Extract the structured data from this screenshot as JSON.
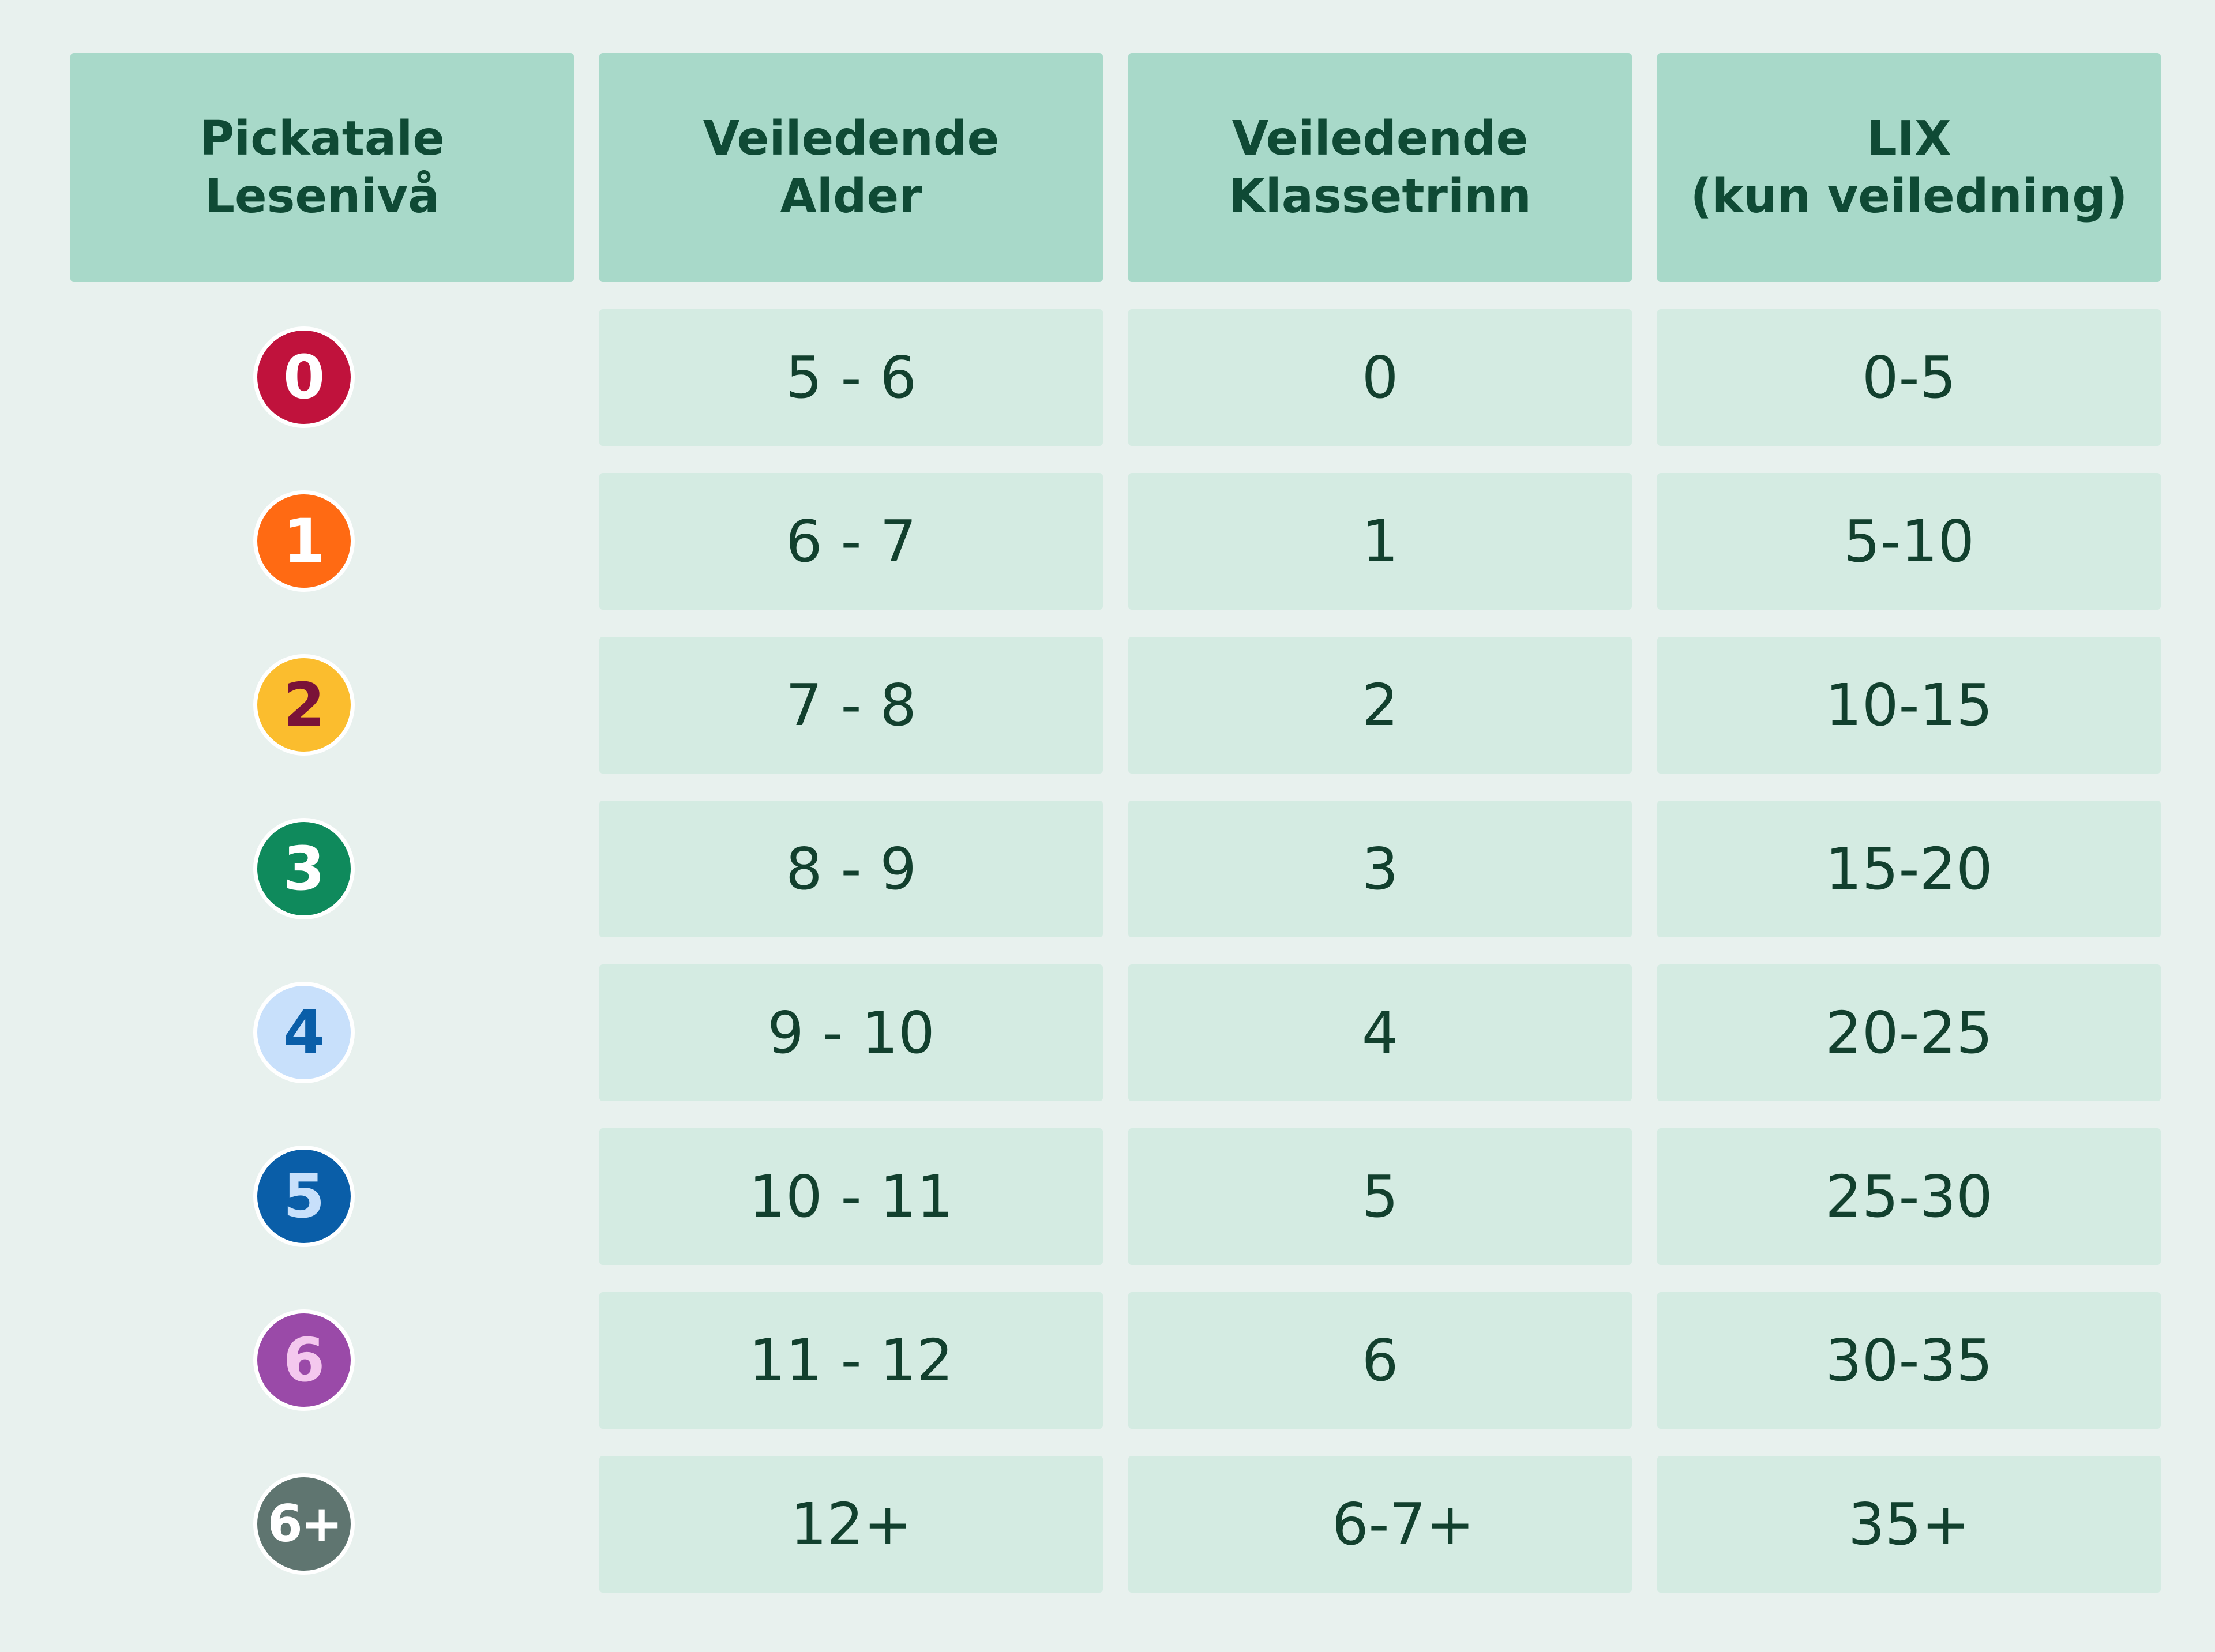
{
  "headers": [
    {
      "line1": "Pickatale",
      "line2": "Lesenivå"
    },
    {
      "line1": "Veiledende",
      "line2": "Alder"
    },
    {
      "line1": "Veiledende",
      "line2": "Klassetrinn"
    },
    {
      "line1": "LIX",
      "line2": "(kun veiledning)"
    }
  ],
  "rows": [
    {
      "level": "0",
      "badge_bg": "#c0123c",
      "badge_fg": "#ffffff",
      "age": "5 - 6",
      "grade": "0",
      "lix": "0-5"
    },
    {
      "level": "1",
      "badge_bg": "#ff6a13",
      "badge_fg": "#ffffff",
      "age": "6 - 7",
      "grade": "1",
      "lix": "5-10"
    },
    {
      "level": "2",
      "badge_bg": "#fbbd2e",
      "badge_fg": "#7a1238",
      "age": "7 - 8",
      "grade": "2",
      "lix": "10-15"
    },
    {
      "level": "3",
      "badge_bg": "#0f8a5c",
      "badge_fg": "#ffffff",
      "age": "8 - 9",
      "grade": "3",
      "lix": "15-20"
    },
    {
      "level": "4",
      "badge_bg": "#c8e0fb",
      "badge_fg": "#0a5ea8",
      "age": "9 - 10",
      "grade": "4",
      "lix": "20-25"
    },
    {
      "level": "5",
      "badge_bg": "#0a5ea8",
      "badge_fg": "#c8e0fb",
      "age": "10 - 11",
      "grade": "5",
      "lix": "25-30"
    },
    {
      "level": "6",
      "badge_bg": "#9a4aa8",
      "badge_fg": "#f4c8ee",
      "age": "11 - 12",
      "grade": "6",
      "lix": "30-35"
    },
    {
      "level": "6+",
      "badge_bg": "#5f7570",
      "badge_fg": "#ffffff",
      "age": "12+",
      "grade": "6-7+",
      "lix": "35+"
    }
  ]
}
